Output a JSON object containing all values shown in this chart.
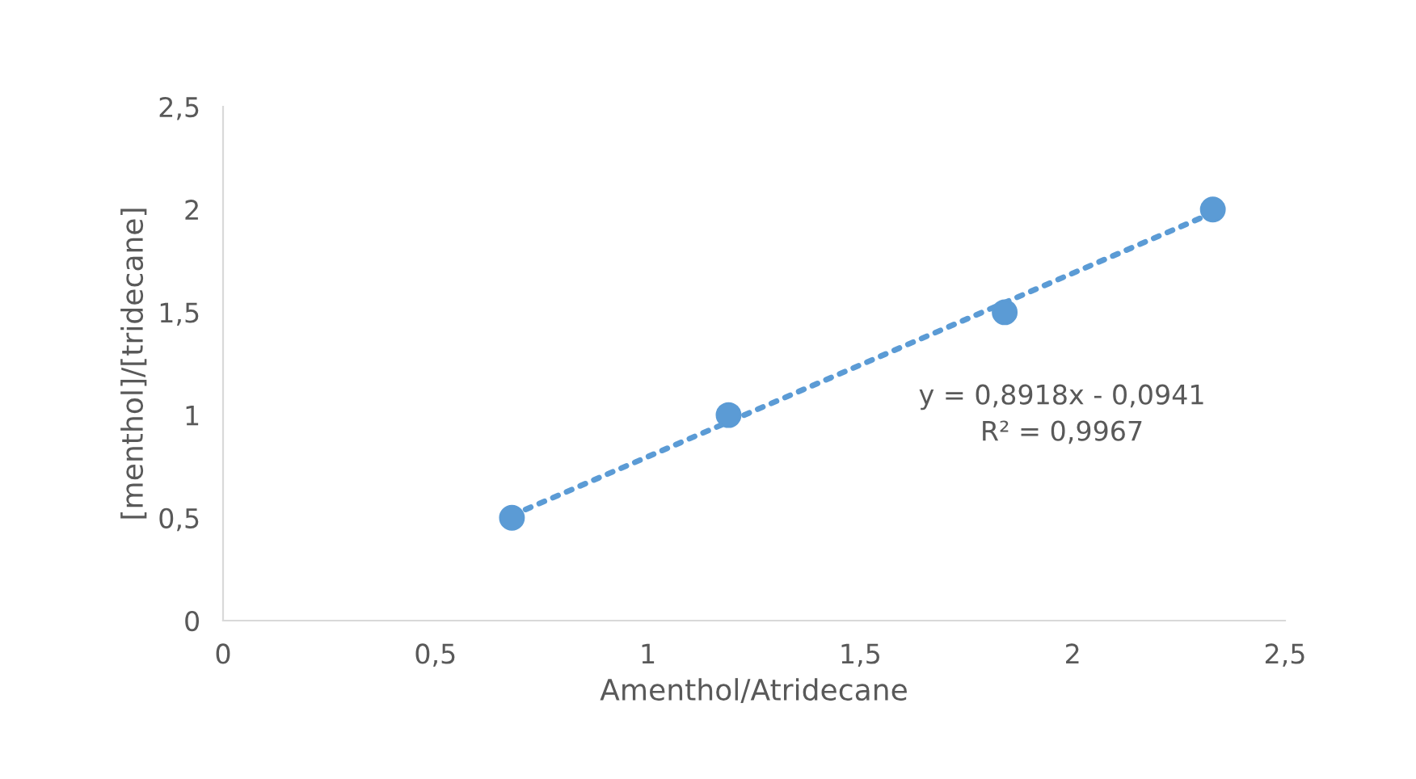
{
  "chart_data": {
    "type": "scatter",
    "xlabel": "Amenthol/Atridecane",
    "ylabel": "[menthol]/[tridecane]",
    "series": [
      {
        "color": "#5b9bd5",
        "x": [
          0.68,
          1.19,
          1.84,
          2.33
        ],
        "values": [
          0.5,
          1.0,
          1.5,
          2.0
        ],
        "marker": "circle"
      },
      {
        "type": "line",
        "color": "#5b9bd5",
        "x": [
          0.68,
          2.33
        ],
        "values": [
          0.512,
          1.984
        ],
        "line_style": "dotted",
        "marker": "none"
      }
    ],
    "annotations": [
      "y = 0,8918x - 0,0941\nR² = 0,9967"
    ],
    "xlim": [
      0,
      2.5
    ],
    "ylim": [
      0,
      2.5
    ],
    "xticks": [
      0,
      {
        "value": 0.5,
        "label": "0,5"
      },
      1,
      {
        "value": 1.5,
        "label": "1,5"
      },
      2,
      {
        "value": 2.5,
        "label": "2,5"
      }
    ],
    "yticks": [
      0,
      {
        "value": 0.5,
        "label": "0,5"
      },
      1,
      {
        "value": 1.5,
        "label": "1,5"
      },
      2,
      {
        "value": 2.5,
        "label": "2,5"
      }
    ],
    "grid": false,
    "legend": false
  }
}
